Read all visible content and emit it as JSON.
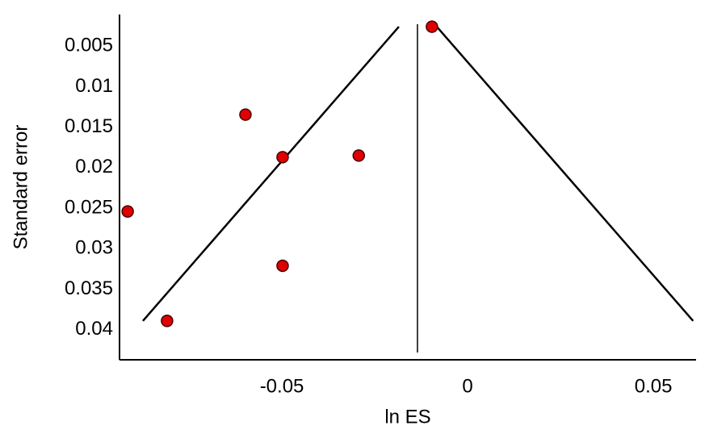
{
  "chart_data": {
    "type": "scatter",
    "xlabel": "ln ES",
    "ylabel": "Standard error",
    "x": [
      -0.0096,
      -0.0598,
      -0.0498,
      -0.0293,
      -0.0915,
      -0.0498,
      -0.0809
    ],
    "values": [
      0.0026,
      0.01345,
      0.0187,
      0.0185,
      0.0254,
      0.0321,
      0.0389
    ],
    "color": "#e00000",
    "xlim": [
      -0.0937,
      0.0615
    ],
    "xticks": [
      -0.05,
      0,
      0.05
    ],
    "ylim": [
      0.0437,
      0.0011
    ],
    "yticks": [
      0.005,
      0.01,
      0.015,
      0.02,
      0.025,
      0.03,
      0.035,
      0.04
    ],
    "lines": [
      {
        "x": [
          -0.0874,
          -0.0185
        ],
        "y": [
          0.0389,
          0.0026
        ]
      },
      {
        "x": [
          -0.0083,
          0.0607
        ],
        "y": [
          0.0026,
          0.0389
        ]
      },
      {
        "x": [
          -0.0135,
          -0.0135
        ],
        "y": [
          0.0023,
          0.0428
        ]
      }
    ]
  }
}
